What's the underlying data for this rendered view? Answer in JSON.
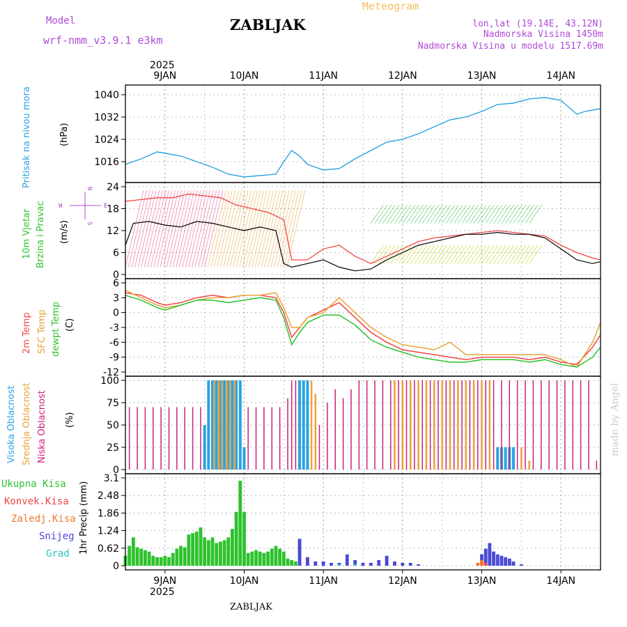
{
  "header": {
    "meteogram": "Meteogram",
    "model_label": "Model",
    "model_name": "wrf-nmm_v3.9.1 e3km",
    "station": "ZABLJAK",
    "lonlat": "lon,lat (19.14E, 43.12N)",
    "elevation": "Nadmorska Visina 1450m",
    "model_elevation": "Nadmorska Visina u modelu 1517.69m",
    "year": "2025",
    "footer_station": "ZABLJAK",
    "watermark": "made by Angel"
  },
  "colors": {
    "pressure": "#29a3e0",
    "wind_label": "#2ec22e",
    "temp2m": "#f04545",
    "sfc": "#e8a33a",
    "dew": "#2ec22e",
    "high_cloud": "#29a3e0",
    "mid_cloud": "#e8a33a",
    "low_cloud": "#c8217a",
    "total_precip": "#2ec22e",
    "convective": "#f04545",
    "freezing": "#f07a2e",
    "snow": "#4a4ad6",
    "graupel": "#2ec2c2",
    "title_meteogram": "#f0c060",
    "purple": "#b04ad6"
  },
  "chart_data": [
    {
      "type": "line",
      "name": "mslp",
      "title": "Pritisak na nivou mora",
      "ylabel": "(hPa)",
      "ylim": [
        1010,
        1042
      ],
      "yticks": [
        "1016",
        "1024",
        "1032",
        "1040"
      ],
      "x_unit": "days since 9JAN 00UTC",
      "x": [
        -0.5,
        -0.3,
        -0.1,
        0.0,
        0.2,
        0.4,
        0.6,
        0.8,
        1.0,
        1.2,
        1.4,
        1.5,
        1.6,
        1.7,
        1.8,
        2.0,
        2.2,
        2.4,
        2.6,
        2.8,
        3.0,
        3.2,
        3.4,
        3.6,
        3.8,
        4.0,
        4.2,
        4.4,
        4.6,
        4.8,
        5.0,
        5.2,
        5.3,
        5.5
      ],
      "values": [
        1015,
        1017,
        1019.5,
        1019,
        1018,
        1016,
        1014,
        1011.5,
        1010.5,
        1011,
        1011.5,
        1016,
        1020,
        1018,
        1015,
        1013,
        1013.5,
        1017,
        1020,
        1023,
        1024,
        1026,
        1028.5,
        1031,
        1032,
        1034,
        1036.5,
        1037,
        1038.5,
        1039,
        1038,
        1033,
        1034,
        1035
      ]
    },
    {
      "type": "line",
      "name": "wind",
      "title": "10m Vjetar Brzina i Pravac",
      "ylabel": "(m/s)",
      "ylim": [
        0,
        24
      ],
      "yticks": [
        "0",
        "6",
        "12",
        "18",
        "24"
      ],
      "compass": [
        "W",
        "E",
        "N",
        "S"
      ],
      "series": [
        {
          "name": "speed",
          "x": [
            -0.5,
            -0.4,
            -0.2,
            0.0,
            0.2,
            0.4,
            0.6,
            0.8,
            1.0,
            1.2,
            1.4,
            1.5,
            1.6,
            1.8,
            2.0,
            2.2,
            2.4,
            2.6,
            2.8,
            3.0,
            3.2,
            3.4,
            3.6,
            3.8,
            4.0,
            4.2,
            4.4,
            4.6,
            4.8,
            5.0,
            5.2,
            5.4,
            5.5
          ],
          "values": [
            8,
            14,
            14.5,
            13.5,
            13,
            14.5,
            14,
            13,
            12,
            13,
            12,
            3,
            2,
            3,
            4,
            2,
            1,
            1.5,
            4,
            6,
            8,
            9,
            10,
            11,
            11,
            11.5,
            11,
            11,
            10,
            7,
            4,
            3,
            3.5
          ]
        },
        {
          "name": "gust",
          "x": [
            -0.5,
            -0.3,
            -0.1,
            0.1,
            0.3,
            0.5,
            0.7,
            0.9,
            1.1,
            1.3,
            1.5,
            1.6,
            1.8,
            2.0,
            2.2,
            2.4,
            2.6,
            2.8,
            3.0,
            3.2,
            3.4,
            3.6,
            3.8,
            4.0,
            4.2,
            4.4,
            4.6,
            4.8,
            5.0,
            5.2,
            5.4,
            5.5
          ],
          "values": [
            20,
            20.5,
            21,
            21,
            22,
            21.5,
            21,
            19,
            18,
            17,
            15,
            4,
            4,
            7,
            8,
            5,
            3,
            5,
            7,
            9,
            10,
            10.5,
            11,
            11.5,
            12,
            11.5,
            11,
            10.5,
            8,
            6,
            4.5,
            4
          ]
        }
      ]
    },
    {
      "type": "line",
      "name": "temperature",
      "ylabel": "(C)",
      "ylim": [
        -12,
        6
      ],
      "yticks": [
        "-12",
        "-9",
        "-6",
        "-3",
        "0",
        "3",
        "6"
      ],
      "series": [
        {
          "name": "2m Temp",
          "x": [
            -0.5,
            -0.3,
            -0.1,
            0.0,
            0.2,
            0.4,
            0.6,
            0.8,
            1.0,
            1.2,
            1.4,
            1.5,
            1.6,
            1.7,
            1.8,
            2.0,
            2.2,
            2.4,
            2.6,
            2.8,
            3.0,
            3.2,
            3.4,
            3.6,
            3.8,
            4.0,
            4.2,
            4.4,
            4.6,
            4.8,
            5.0,
            5.2,
            5.4,
            5.5
          ],
          "values": [
            4,
            3.5,
            2,
            1.5,
            2,
            3,
            3.5,
            3,
            3.5,
            3.5,
            3,
            0,
            -5,
            -3,
            -1,
            0.5,
            2,
            -1,
            -4,
            -6,
            -7.5,
            -8,
            -8.5,
            -9,
            -9.5,
            -9,
            -9,
            -9,
            -9.5,
            -9,
            -10,
            -10.5,
            -7,
            -4.5
          ]
        },
        {
          "name": "SFC Temp",
          "x": [
            -0.5,
            -0.3,
            -0.1,
            0.0,
            0.2,
            0.4,
            0.6,
            0.8,
            1.0,
            1.2,
            1.4,
            1.5,
            1.6,
            1.7,
            1.8,
            2.0,
            2.2,
            2.4,
            2.6,
            2.8,
            3.0,
            3.2,
            3.4,
            3.6,
            3.8,
            4.0,
            4.2,
            4.4,
            4.6,
            4.8,
            5.0,
            5.2,
            5.4,
            5.5
          ],
          "values": [
            4.5,
            3,
            1.5,
            1,
            1.5,
            2.5,
            3,
            3,
            3.5,
            3.5,
            4,
            1,
            -3,
            -3,
            -1,
            0,
            3,
            0,
            -3,
            -5,
            -6.5,
            -7,
            -7.5,
            -6,
            -8.5,
            -8.5,
            -8.5,
            -8.5,
            -8.5,
            -8.5,
            -9.5,
            -11,
            -6,
            -2
          ]
        },
        {
          "name": "dewpt Temp",
          "x": [
            -0.5,
            -0.3,
            -0.1,
            0.0,
            0.2,
            0.4,
            0.6,
            0.8,
            1.0,
            1.2,
            1.4,
            1.5,
            1.6,
            1.7,
            1.8,
            2.0,
            2.2,
            2.4,
            2.6,
            2.8,
            3.0,
            3.2,
            3.4,
            3.6,
            3.8,
            4.0,
            4.2,
            4.4,
            4.6,
            4.8,
            5.0,
            5.2,
            5.4,
            5.5
          ],
          "values": [
            3.5,
            2.5,
            1,
            0.5,
            1.5,
            2.5,
            2.5,
            2,
            2.5,
            3,
            2.5,
            -1,
            -6.5,
            -4,
            -2,
            -0.5,
            -0.5,
            -2.5,
            -5.5,
            -7,
            -8,
            -9,
            -9.5,
            -10,
            -10,
            -9.5,
            -9.5,
            -9.5,
            -10,
            -9.5,
            -10.5,
            -11,
            -9,
            -7
          ]
        }
      ]
    },
    {
      "type": "bar",
      "name": "cloud_cover",
      "ylabel": "(%)",
      "ylim": [
        0,
        100
      ],
      "yticks": [
        "0",
        "25",
        "50",
        "75",
        "100"
      ],
      "series": [
        {
          "name": "Visoka Oblacnost",
          "x": [
            0.5,
            0.55,
            0.6,
            0.65,
            0.7,
            0.75,
            0.8,
            0.85,
            0.9,
            0.95,
            1.0,
            1.7,
            1.75,
            1.8,
            4.2,
            4.25,
            4.3,
            4.35,
            4.4
          ],
          "values": [
            50,
            100,
            100,
            100,
            100,
            100,
            100,
            100,
            100,
            100,
            25,
            100,
            100,
            100,
            25,
            25,
            25,
            25,
            25
          ]
        },
        {
          "name": "Srednja Oblacnost",
          "x": [
            0.62,
            0.68,
            0.72,
            0.78,
            0.82,
            0.88,
            1.85,
            1.9,
            2.9,
            3.0,
            3.1,
            3.2,
            3.3,
            3.4,
            3.5,
            3.6,
            3.7,
            3.8,
            3.9,
            4.0,
            4.1,
            4.5,
            4.6
          ],
          "values": [
            100,
            100,
            100,
            100,
            100,
            100,
            100,
            85,
            100,
            100,
            100,
            100,
            100,
            100,
            100,
            100,
            100,
            100,
            100,
            100,
            100,
            25,
            10
          ]
        },
        {
          "name": "Niska Oblacnost",
          "x": [
            -0.45,
            -0.35,
            -0.25,
            -0.15,
            -0.05,
            0.05,
            0.15,
            0.25,
            0.35,
            0.45,
            1.05,
            1.15,
            1.25,
            1.35,
            1.45,
            1.55,
            1.6,
            1.65,
            1.95,
            2.05,
            2.15,
            2.25,
            2.35,
            2.45,
            2.55,
            2.65,
            2.75,
            2.85,
            2.95,
            3.05,
            3.15,
            3.25,
            3.35,
            3.45,
            3.55,
            3.65,
            3.75,
            3.85,
            3.95,
            4.05,
            4.15,
            4.25,
            4.35,
            4.45,
            4.55,
            4.65,
            4.75,
            4.85,
            4.95,
            5.05,
            5.15,
            5.25,
            5.35,
            5.45
          ],
          "values": [
            70,
            70,
            70,
            70,
            70,
            70,
            70,
            70,
            70,
            70,
            70,
            70,
            70,
            70,
            70,
            80,
            100,
            100,
            50,
            75,
            90,
            80,
            90,
            100,
            100,
            100,
            100,
            100,
            100,
            100,
            100,
            100,
            100,
            100,
            100,
            100,
            100,
            100,
            100,
            100,
            100,
            100,
            100,
            100,
            100,
            100,
            100,
            100,
            100,
            100,
            100,
            100,
            100,
            10
          ]
        }
      ]
    },
    {
      "type": "bar",
      "name": "precipitation",
      "ylabel": "1hr Precip (mm)",
      "ylim": [
        0,
        3.1
      ],
      "yticks": [
        "0",
        "0.62",
        "1.24",
        "1.86",
        "2.48",
        "3.1"
      ],
      "series": [
        {
          "name": "Ukupna Kisa",
          "x": [
            -0.5,
            -0.45,
            -0.4,
            -0.35,
            -0.3,
            -0.25,
            -0.2,
            -0.15,
            -0.1,
            -0.05,
            0.0,
            0.05,
            0.1,
            0.15,
            0.2,
            0.25,
            0.3,
            0.35,
            0.4,
            0.45,
            0.5,
            0.55,
            0.6,
            0.65,
            0.7,
            0.75,
            0.8,
            0.85,
            0.9,
            0.95,
            1.0,
            1.05,
            1.1,
            1.15,
            1.2,
            1.25,
            1.3,
            1.35,
            1.4,
            1.45,
            1.5,
            1.55,
            1.6,
            1.65
          ],
          "values": [
            0.35,
            0.7,
            1.0,
            0.65,
            0.6,
            0.55,
            0.5,
            0.35,
            0.3,
            0.3,
            0.35,
            0.3,
            0.45,
            0.6,
            0.7,
            0.65,
            1.1,
            1.15,
            1.2,
            1.35,
            1.0,
            0.9,
            1.0,
            0.8,
            0.85,
            0.9,
            1.0,
            1.3,
            1.9,
            3.0,
            1.9,
            0.45,
            0.5,
            0.55,
            0.5,
            0.45,
            0.5,
            0.6,
            0.7,
            0.6,
            0.5,
            0.25,
            0.2,
            0.15
          ]
        },
        {
          "name": "Snijeg",
          "x": [
            1.7,
            1.8,
            1.9,
            2.0,
            2.1,
            2.2,
            2.3,
            2.4,
            2.5,
            2.6,
            2.7,
            2.8,
            2.9,
            3.0,
            3.1,
            3.2,
            4.0,
            4.05,
            4.1,
            4.15,
            4.2,
            4.25,
            4.3,
            4.35,
            4.4,
            4.5
          ],
          "values": [
            0.95,
            0.3,
            0.15,
            0.15,
            0.1,
            0.1,
            0.4,
            0.2,
            0.1,
            0.1,
            0.2,
            0.35,
            0.15,
            0.1,
            0.1,
            0.05,
            0.4,
            0.6,
            0.8,
            0.5,
            0.4,
            0.35,
            0.3,
            0.25,
            0.15,
            0.05
          ]
        },
        {
          "name": "Konvek.Kisa",
          "x": [
            4.0,
            4.05
          ],
          "values": [
            0.15,
            0.1
          ]
        },
        {
          "name": "Zaledj.Kisa",
          "x": [
            3.95,
            4.0
          ],
          "values": [
            0.1,
            0.2
          ]
        },
        {
          "name": "Grad",
          "x": [
            2.2,
            2.4
          ],
          "values": [
            0.05,
            0.05
          ]
        }
      ]
    }
  ],
  "x_axis": {
    "days": [
      "9JAN",
      "10JAN",
      "11JAN",
      "12JAN",
      "13JAN",
      "14JAN"
    ],
    "year": "2025",
    "xlim": [
      -0.5,
      5.5
    ]
  },
  "labels": {
    "pressure_title": "Pritisak na nivou mora",
    "pressure_unit": "(hPa)",
    "wind_title_1": "10m Vjetar",
    "wind_title_2": "Brzina i Pravac",
    "wind_unit": "(m/s)",
    "temp_title_1": "2m Temp",
    "temp_title_2": "SFC Temp",
    "temp_title_3": "dewpt Temp",
    "temp_unit": "(C)",
    "cloud_title_1": "Visoka Oblacnost",
    "cloud_title_2": "Srednja Oblacnost",
    "cloud_title_3": "Niska Oblacnost",
    "cloud_unit": "(%)",
    "precip_unit": "1hr Precip (mm)",
    "legend": [
      "Ukupna Kisa",
      "Konvek.Kisa",
      "Zaledj.Kisa",
      "Snijeg",
      "Grad"
    ]
  }
}
